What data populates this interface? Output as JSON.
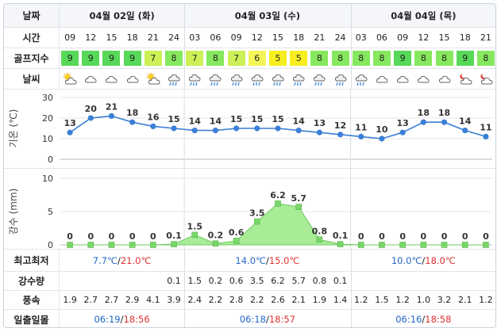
{
  "labels": {
    "date": "날짜",
    "time": "시간",
    "golf_index": "골프지수",
    "weather": "날씨",
    "min_max": "최고최저",
    "precip": "강수량",
    "wind": "풍속",
    "sun": "일출일몰"
  },
  "days": [
    {
      "label": "04월 02일 (화)",
      "temp_min": "7.7℃",
      "temp_max": "21.0℃",
      "sunrise": "06:19",
      "sunset": "18:56"
    },
    {
      "label": "04월 03일 (수)",
      "temp_min": "14.0℃",
      "temp_max": "15.0℃",
      "sunrise": "06:18",
      "sunset": "18:57"
    },
    {
      "label": "04월 04일 (목)",
      "temp_min": "10.0℃",
      "temp_max": "18.0℃",
      "sunrise": "06:16",
      "sunset": "18:58"
    }
  ],
  "sep": "/",
  "times": [
    "09",
    "12",
    "15",
    "18",
    "21",
    "24",
    "03",
    "06",
    "09",
    "12",
    "15",
    "18",
    "21",
    "24",
    "03",
    "06",
    "09",
    "12",
    "15",
    "18",
    "21"
  ],
  "golf_scores": [
    "9",
    "9",
    "9",
    "9",
    "7",
    "8",
    "7",
    "8",
    "7",
    "6",
    "5",
    "5",
    "8",
    "8",
    "8",
    "8",
    "9",
    "8",
    "8",
    "9",
    "8"
  ],
  "score_colors": {
    "9": "#58d858",
    "8": "#86e85e",
    "7": "#ccf055",
    "6": "#f5f55a",
    "5": "#f7ee1f"
  },
  "weather_icons": [
    "sun-cloud-icon",
    "cloud-icon",
    "cloud-icon",
    "cloud-icon",
    "sun-cloud-icon",
    "rain-icon",
    "rain-icon",
    "rain-icon",
    "rain-icon",
    "rain-icon",
    "rain-icon",
    "rain-icon",
    "rain-icon",
    "rain-icon",
    "rain-icon",
    "cloud-icon",
    "cloud-icon",
    "cloud-icon",
    "cloud-icon",
    "moon-cloud-icon",
    "moon-cloud-icon"
  ],
  "precip": [
    "",
    "",
    "",
    "",
    "",
    "0.1",
    "1.5",
    "0.2",
    "0.6",
    "3.5",
    "6.2",
    "5.7",
    "0.8",
    "0.1",
    "",
    "",
    "",
    "",
    "",
    "",
    ""
  ],
  "wind": [
    "1.9",
    "2.7",
    "2.7",
    "2.9",
    "4.1",
    "3.9",
    "2.4",
    "2.2",
    "2.8",
    "2.2",
    "2.6",
    "2.1",
    "1.9",
    "1.4",
    "1.2",
    "1.5",
    "1.2",
    "1.0",
    "3.2",
    "2.1",
    "1.2"
  ],
  "chart_data": [
    {
      "type": "line",
      "ylabel": "기온 (℃)",
      "yticks": [
        "30",
        "20",
        "10",
        "0"
      ],
      "ylim": [
        0,
        30
      ],
      "x": [
        "09",
        "12",
        "15",
        "18",
        "21",
        "24",
        "03",
        "06",
        "09",
        "12",
        "15",
        "18",
        "21",
        "24",
        "03",
        "06",
        "09",
        "12",
        "15",
        "18",
        "21"
      ],
      "values": [
        13,
        20,
        21,
        18,
        16,
        15,
        14,
        14,
        15,
        15,
        15,
        14,
        13,
        12,
        11,
        10,
        13,
        18,
        18,
        14,
        11
      ],
      "color": "#3a7fd5",
      "grid": true
    },
    {
      "type": "area",
      "ylabel": "강수 (mm)",
      "yticks": [
        "10",
        "5",
        "0"
      ],
      "ylim": [
        0,
        10
      ],
      "x": [
        "09",
        "12",
        "15",
        "18",
        "21",
        "24",
        "03",
        "06",
        "09",
        "12",
        "15",
        "18",
        "21",
        "24",
        "03",
        "06",
        "09",
        "12",
        "15",
        "18",
        "21"
      ],
      "values": [
        0,
        0,
        0,
        0,
        0,
        0.1,
        1.5,
        0.2,
        0.6,
        3.5,
        6.2,
        5.7,
        0.8,
        0.1,
        0,
        0,
        0,
        0,
        0,
        0,
        0
      ],
      "labels": [
        "0",
        "0",
        "0",
        "0",
        "0",
        "0.1",
        "1.5",
        "0.2",
        "0.6",
        "3.5",
        "6.2",
        "5.7",
        "0.8",
        "0.1",
        "0",
        "0",
        "0",
        "0",
        "0",
        "0",
        "0"
      ],
      "color": "#7ad66a",
      "grid": true
    }
  ]
}
